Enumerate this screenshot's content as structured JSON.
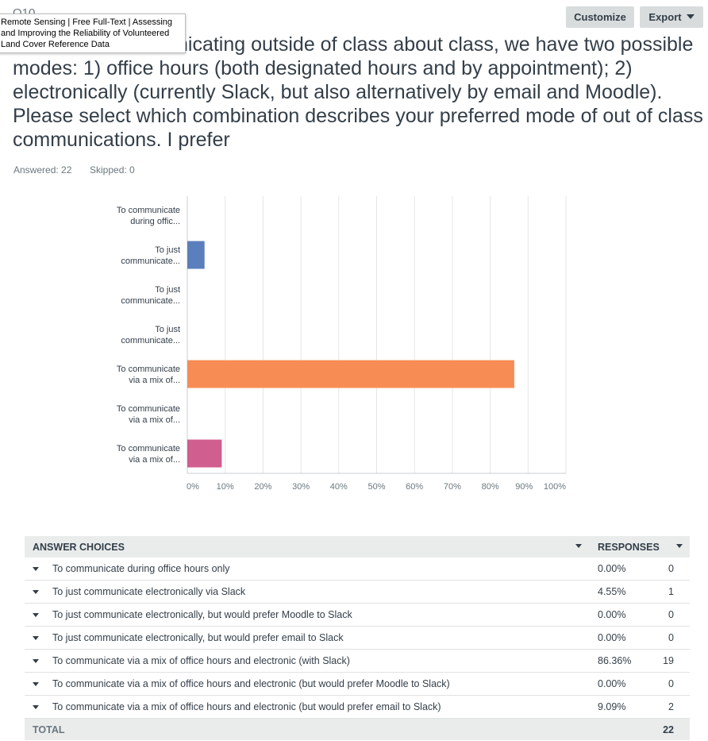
{
  "question": {
    "number": "Q10",
    "text": "In terms of communicating outside of class about class, we have two possible modes: 1) office hours (both designated hours and by appointment); 2) electronically (currently Slack, but also alternatively by email and Moodle). Please select which combination describes your preferred mode of out of class communications. I prefer",
    "answered": "Answered: 22",
    "skipped": "Skipped: 0"
  },
  "tooltip": "Remote Sensing | Free Full-Text | Assessing\nand Improving the Reliability of Volunteered\nLand Cover Reference Data",
  "toolbar": {
    "customize": "Customize",
    "export": "Export"
  },
  "chart_data": {
    "type": "bar",
    "orientation": "horizontal",
    "categories": [
      [
        "To communicate",
        "during offic..."
      ],
      [
        "To just",
        "communicate..."
      ],
      [
        "To just",
        "communicate..."
      ],
      [
        "To just",
        "communicate..."
      ],
      [
        "To communicate",
        "via a mix of..."
      ],
      [
        "To communicate",
        "via a mix of..."
      ],
      [
        "To communicate",
        "via a mix of..."
      ]
    ],
    "values": [
      0,
      4.55,
      0,
      0,
      86.36,
      0,
      9.09
    ],
    "colors": [
      "#5b7fbd",
      "#5b7fbd",
      "#5b7fbd",
      "#5b7fbd",
      "#f78c55",
      "#f78c55",
      "#d05e8f"
    ],
    "xlim": [
      0,
      100
    ],
    "ticks": [
      "0%",
      "10%",
      "20%",
      "30%",
      "40%",
      "50%",
      "60%",
      "70%",
      "80%",
      "90%",
      "100%"
    ],
    "grid": true
  },
  "table": {
    "col_answer": "ANSWER CHOICES",
    "col_responses": "RESPONSES",
    "rows": [
      {
        "label": "To communicate during office hours only",
        "pct": "0.00%",
        "count": "0"
      },
      {
        "label": "To just communicate electronically via Slack",
        "pct": "4.55%",
        "count": "1"
      },
      {
        "label": "To just communicate electronically, but would prefer Moodle to Slack",
        "pct": "0.00%",
        "count": "0"
      },
      {
        "label": "To just communicate electronically, but would prefer email to Slack",
        "pct": "0.00%",
        "count": "0"
      },
      {
        "label": "To communicate via a mix of office hours and electronic (with Slack)",
        "pct": "86.36%",
        "count": "19"
      },
      {
        "label": "To communicate via a mix of office hours and electronic (but would prefer Moodle to Slack)",
        "pct": "0.00%",
        "count": "0"
      },
      {
        "label": "To communicate via a mix of office hours and electronic (but would prefer email to Slack)",
        "pct": "9.09%",
        "count": "2"
      }
    ],
    "total_label": "TOTAL",
    "total_count": "22"
  }
}
